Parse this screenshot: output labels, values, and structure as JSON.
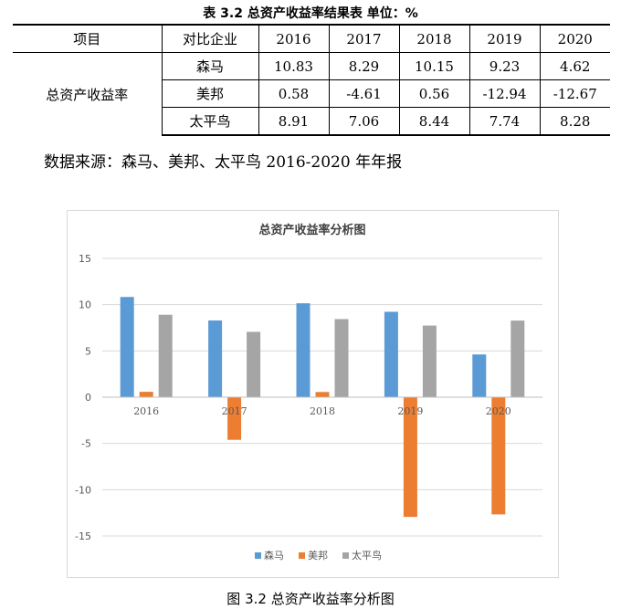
{
  "table": {
    "title": "表 3.2 总资产收益率结果表 单位：%",
    "header": [
      "项目",
      "对比企业",
      "2016",
      "2017",
      "2018",
      "2019",
      "2020"
    ],
    "row_label": "总资产收益率",
    "rows": [
      {
        "company": "森马",
        "values": [
          "10.83",
          "8.29",
          "10.15",
          "9.23",
          "4.62"
        ]
      },
      {
        "company": "美邦",
        "values": [
          "0.58",
          "-4.61",
          "0.56",
          "-12.94",
          "-12.67"
        ]
      },
      {
        "company": "太平鸟",
        "values": [
          "8.91",
          "7.06",
          "8.44",
          "7.74",
          "8.28"
        ]
      }
    ],
    "source": "数据来源：森马、美邦、太平鸟 2016-2020 年年报"
  },
  "chart_data": {
    "type": "bar",
    "title": "总资产收益率分析图",
    "categories": [
      "2016",
      "2017",
      "2018",
      "2019",
      "2020"
    ],
    "series": [
      {
        "name": "森马",
        "color": "#5b9bd5",
        "values": [
          10.83,
          8.29,
          10.15,
          9.23,
          4.62
        ]
      },
      {
        "name": "美邦",
        "color": "#ed7d31",
        "values": [
          0.58,
          -4.61,
          0.56,
          -12.94,
          -12.67
        ]
      },
      {
        "name": "太平鸟",
        "color": "#a5a5a5",
        "values": [
          8.91,
          7.06,
          8.44,
          7.74,
          8.28
        ]
      }
    ],
    "ylim": [
      -15,
      15
    ],
    "yticks": [
      "15",
      "10",
      "5",
      "0",
      "-5",
      "-10",
      "-15"
    ],
    "legend_position": "bottom",
    "grid": true
  },
  "figure_caption": "图 3.2 总资产收益率分析图"
}
